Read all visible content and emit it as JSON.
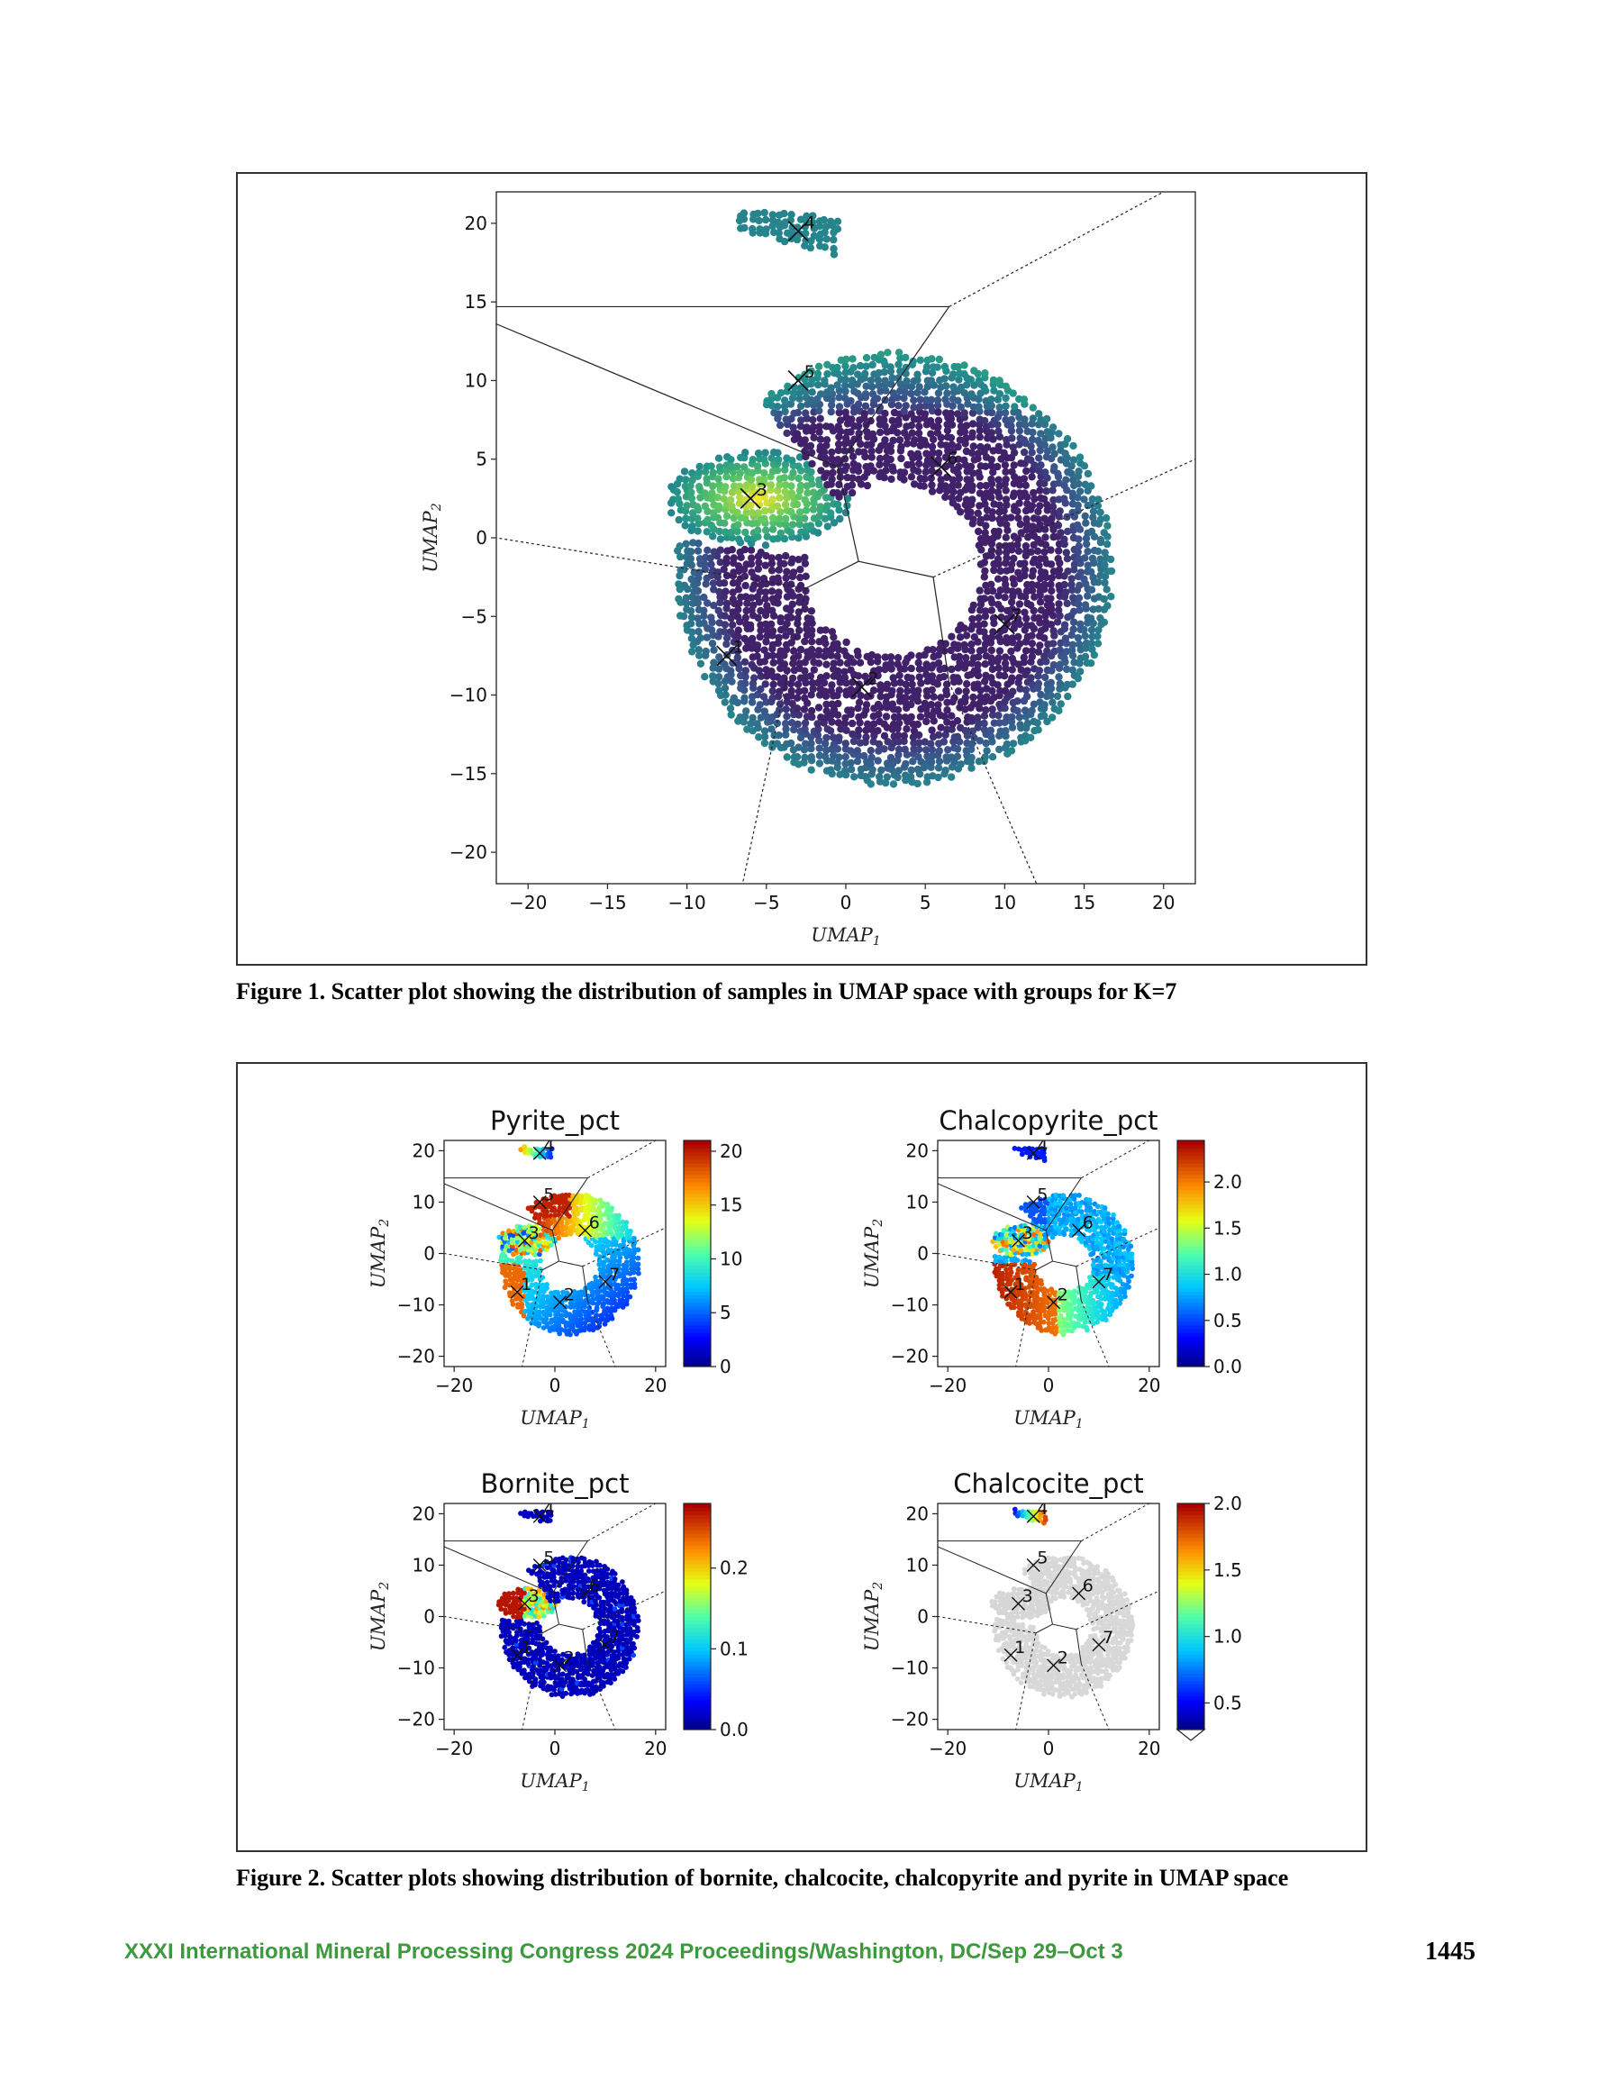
{
  "figure1": {
    "caption": "Figure 1. Scatter plot showing the distribution of samples in UMAP space with groups for K=7",
    "chart_data": {
      "type": "scatter",
      "title": "",
      "xlabel": "UMAP",
      "xlabel_sub": "1",
      "ylabel": "UMAP",
      "ylabel_sub": "2",
      "xlim": [
        -22,
        22
      ],
      "ylim": [
        -22,
        22
      ],
      "xticks": [
        -20,
        -15,
        -10,
        -5,
        0,
        5,
        10,
        15,
        20
      ],
      "yticks": [
        -20,
        -15,
        -10,
        -5,
        0,
        5,
        10,
        15,
        20
      ],
      "colormap": "viridis",
      "centroids": [
        {
          "label": "1",
          "x": -7.5,
          "y": -7.5
        },
        {
          "label": "2",
          "x": 1.0,
          "y": -9.5
        },
        {
          "label": "3",
          "x": -6.0,
          "y": 2.5
        },
        {
          "label": "4",
          "x": -3.0,
          "y": 19.5
        },
        {
          "label": "5",
          "x": -3.0,
          "y": 10.0
        },
        {
          "label": "6",
          "x": 6.0,
          "y": 4.5
        },
        {
          "label": "7",
          "x": 10.0,
          "y": -5.5
        }
      ]
    }
  },
  "figure2": {
    "caption": "Figure 2. Scatter plots showing distribution of bornite, chalcocite, chalcopyrite and pyrite in UMAP space",
    "chart_data": [
      {
        "type": "scatter",
        "title": "Pyrite_pct",
        "colormap": "jet",
        "xlabel": "UMAP",
        "xlabel_sub": "1",
        "ylabel": "UMAP",
        "ylabel_sub": "2",
        "xticks": [
          -20,
          0,
          20
        ],
        "yticks": [
          -20,
          -10,
          0,
          10,
          20
        ],
        "colorbar_ticks": [
          "0",
          "5",
          "10",
          "15",
          "20"
        ],
        "colorbar_range": [
          0,
          21
        ]
      },
      {
        "type": "scatter",
        "title": "Chalcopyrite_pct",
        "colormap": "jet",
        "xlabel": "UMAP",
        "xlabel_sub": "1",
        "ylabel": "UMAP",
        "ylabel_sub": "2",
        "xticks": [
          -20,
          0,
          20
        ],
        "yticks": [
          -20,
          -10,
          0,
          10,
          20
        ],
        "colorbar_ticks": [
          "0.0",
          "0.5",
          "1.0",
          "1.5",
          "2.0"
        ],
        "colorbar_range": [
          0,
          2.45
        ]
      },
      {
        "type": "scatter",
        "title": "Bornite_pct",
        "colormap": "jet",
        "xlabel": "UMAP",
        "xlabel_sub": "1",
        "ylabel": "UMAP",
        "ylabel_sub": "2",
        "xticks": [
          -20,
          0,
          20
        ],
        "yticks": [
          -20,
          -10,
          0,
          10,
          20
        ],
        "colorbar_ticks": [
          "0.0",
          "0.1",
          "0.2"
        ],
        "colorbar_range": [
          0,
          0.28
        ]
      },
      {
        "type": "scatter",
        "title": "Chalcocite_pct",
        "colormap": "jet",
        "xlabel": "UMAP",
        "xlabel_sub": "1",
        "ylabel": "UMAP",
        "ylabel_sub": "2",
        "xticks": [
          -20,
          0,
          20
        ],
        "yticks": [
          -20,
          -10,
          0,
          10,
          20
        ],
        "colorbar_ticks": [
          "0.5",
          "1.0",
          "1.5",
          "2.0"
        ],
        "colorbar_range": [
          0.3,
          2.0
        ]
      }
    ]
  },
  "footer": {
    "text": "XXXI International Mineral Processing Congress 2024 Proceedings/Washington, DC/Sep 29–Oct 3",
    "page_number": "1445",
    "color": "#3c9a3c"
  }
}
